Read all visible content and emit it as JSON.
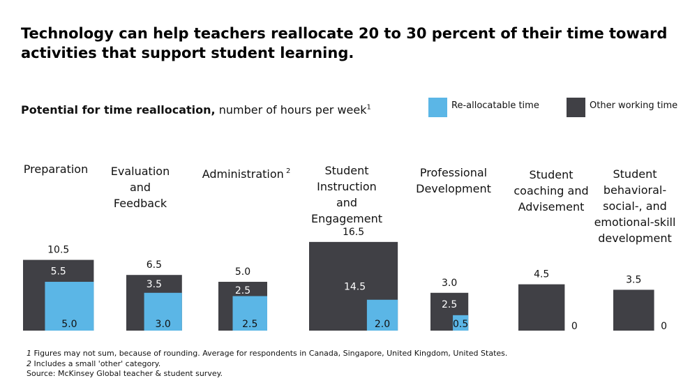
{
  "title": "Technology can help teachers reallocate 20 to 30 percent of their time toward activities that support student learning.",
  "subtitle": {
    "bold": "Potential for time reallocation,",
    "rest": " number of hours per week",
    "sup": "1"
  },
  "legend": {
    "items": [
      {
        "label": "Re-allocatable time",
        "color": "#5bb6e6"
      },
      {
        "label": "Other working time",
        "color": "#404045"
      }
    ]
  },
  "colors": {
    "reallocatable": "#5bb6e6",
    "total": "#404045",
    "value_on_dark": "#ffffff",
    "value_on_light": "#111111"
  },
  "chart_data": {
    "type": "bar",
    "ylabel": "number of hours per week",
    "series": [
      {
        "name": "Re-allocatable time"
      },
      {
        "name": "Other working time"
      }
    ],
    "categories": [
      {
        "label_lines": [
          "Preparation"
        ],
        "sup": "",
        "total": 10.5,
        "other": 5.5,
        "realloc": 5.0
      },
      {
        "label_lines": [
          "Evaluation",
          "and",
          "Feedback"
        ],
        "sup": "",
        "total": 6.5,
        "other": 3.5,
        "realloc": 3.0
      },
      {
        "label_lines": [
          "Administration"
        ],
        "sup": "2",
        "total": 5.0,
        "other": 2.5,
        "realloc": 2.5
      },
      {
        "label_lines": [
          "Student",
          "Instruction",
          "and",
          "Engagement"
        ],
        "sup": "",
        "total": 16.5,
        "other": 14.5,
        "realloc": 2.0
      },
      {
        "label_lines": [
          "Professional",
          "Development"
        ],
        "sup": "",
        "total": 3.0,
        "other": 2.5,
        "realloc": 0.5
      },
      {
        "label_lines": [
          "Student",
          "coaching and",
          "Advisement"
        ],
        "sup": "",
        "total": 4.5,
        "other": null,
        "realloc": 0
      },
      {
        "label_lines": [
          "Student",
          "behavioral-",
          "social-, and",
          "emotional-skill",
          "development"
        ],
        "sup": "",
        "total": 3.5,
        "other": null,
        "realloc": 0
      }
    ]
  },
  "footnotes": {
    "note1_num": "1",
    "note1_text": " Figures may not sum, because of rounding. Average for respondents in Canada, Singapore, United Kingdom, United States.",
    "note2_num": "2",
    "note2_text": " Includes a small 'other' category.",
    "source": "Source: McKinsey Global teacher & student survey."
  }
}
